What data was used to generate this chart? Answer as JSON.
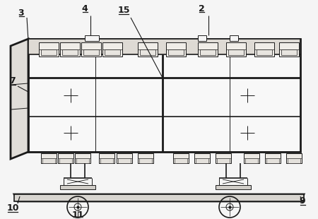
{
  "bg_color": "#f5f5f5",
  "line_color": "#1a1a1a",
  "fig_width": 4.5,
  "fig_height": 3.1,
  "dpi": 100
}
